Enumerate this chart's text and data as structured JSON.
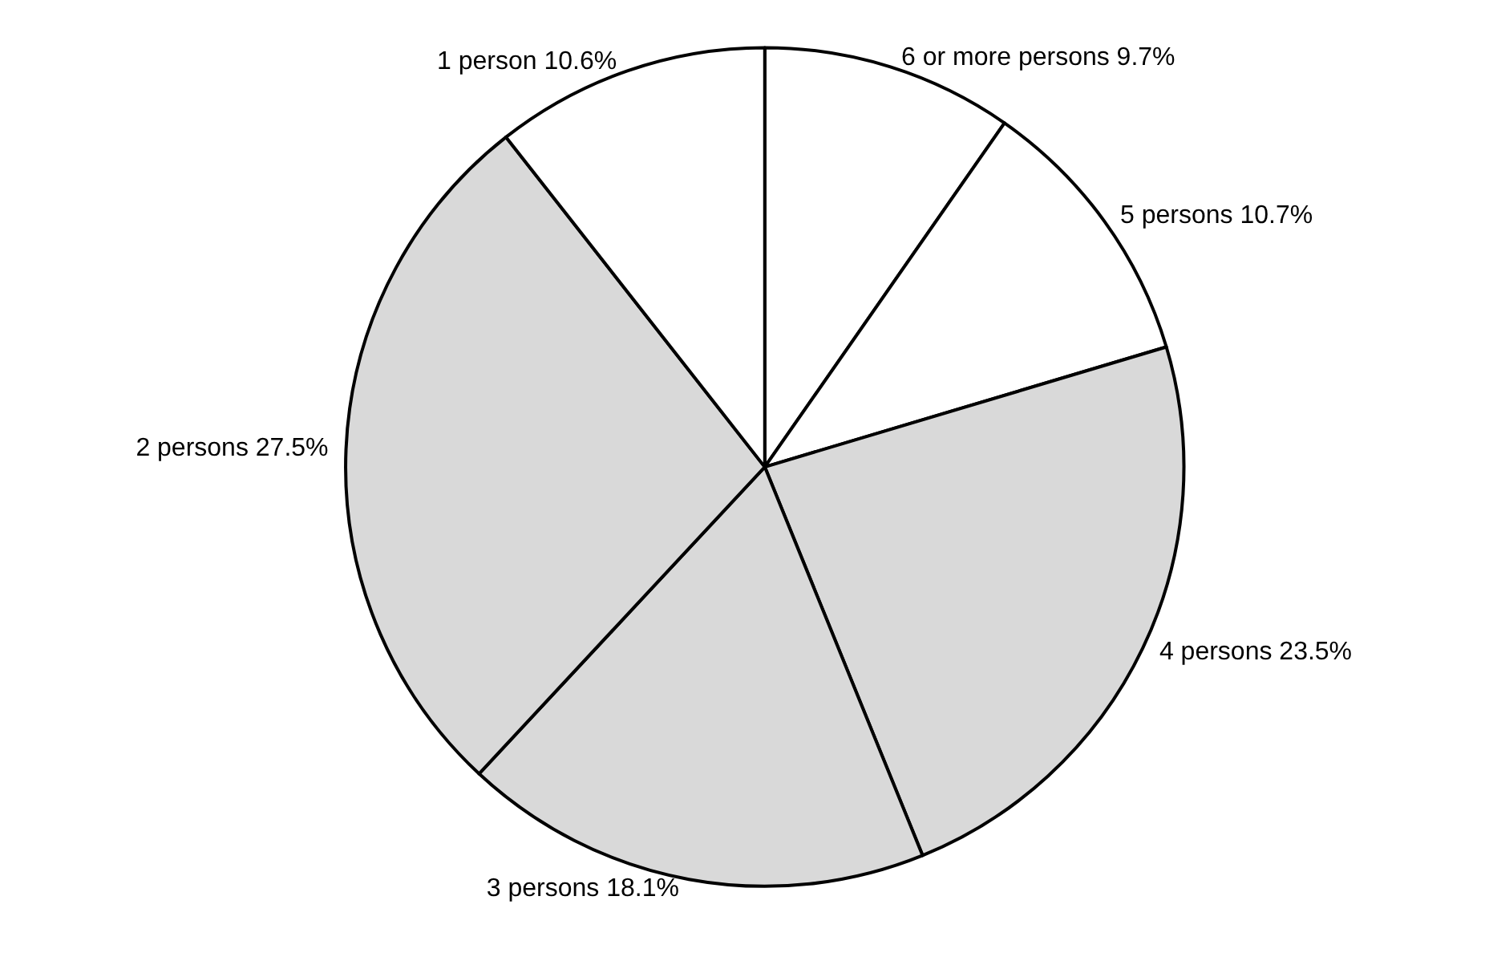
{
  "chart_data": {
    "type": "pie",
    "categories": [
      "6 or more persons",
      "5 persons",
      "4 persons",
      "3 persons",
      "2 persons",
      "1 person"
    ],
    "values": [
      9.7,
      10.7,
      23.5,
      18.1,
      27.5,
      10.6
    ],
    "value_labels": [
      "9.7%",
      "10.7%",
      "23.5%",
      "18.1%",
      "27.5%",
      "10.6%"
    ],
    "colors": [
      "#ffffff",
      "#ffffff",
      "#d9d9d9",
      "#d9d9d9",
      "#d9d9d9",
      "#ffffff"
    ],
    "legend": false
  }
}
